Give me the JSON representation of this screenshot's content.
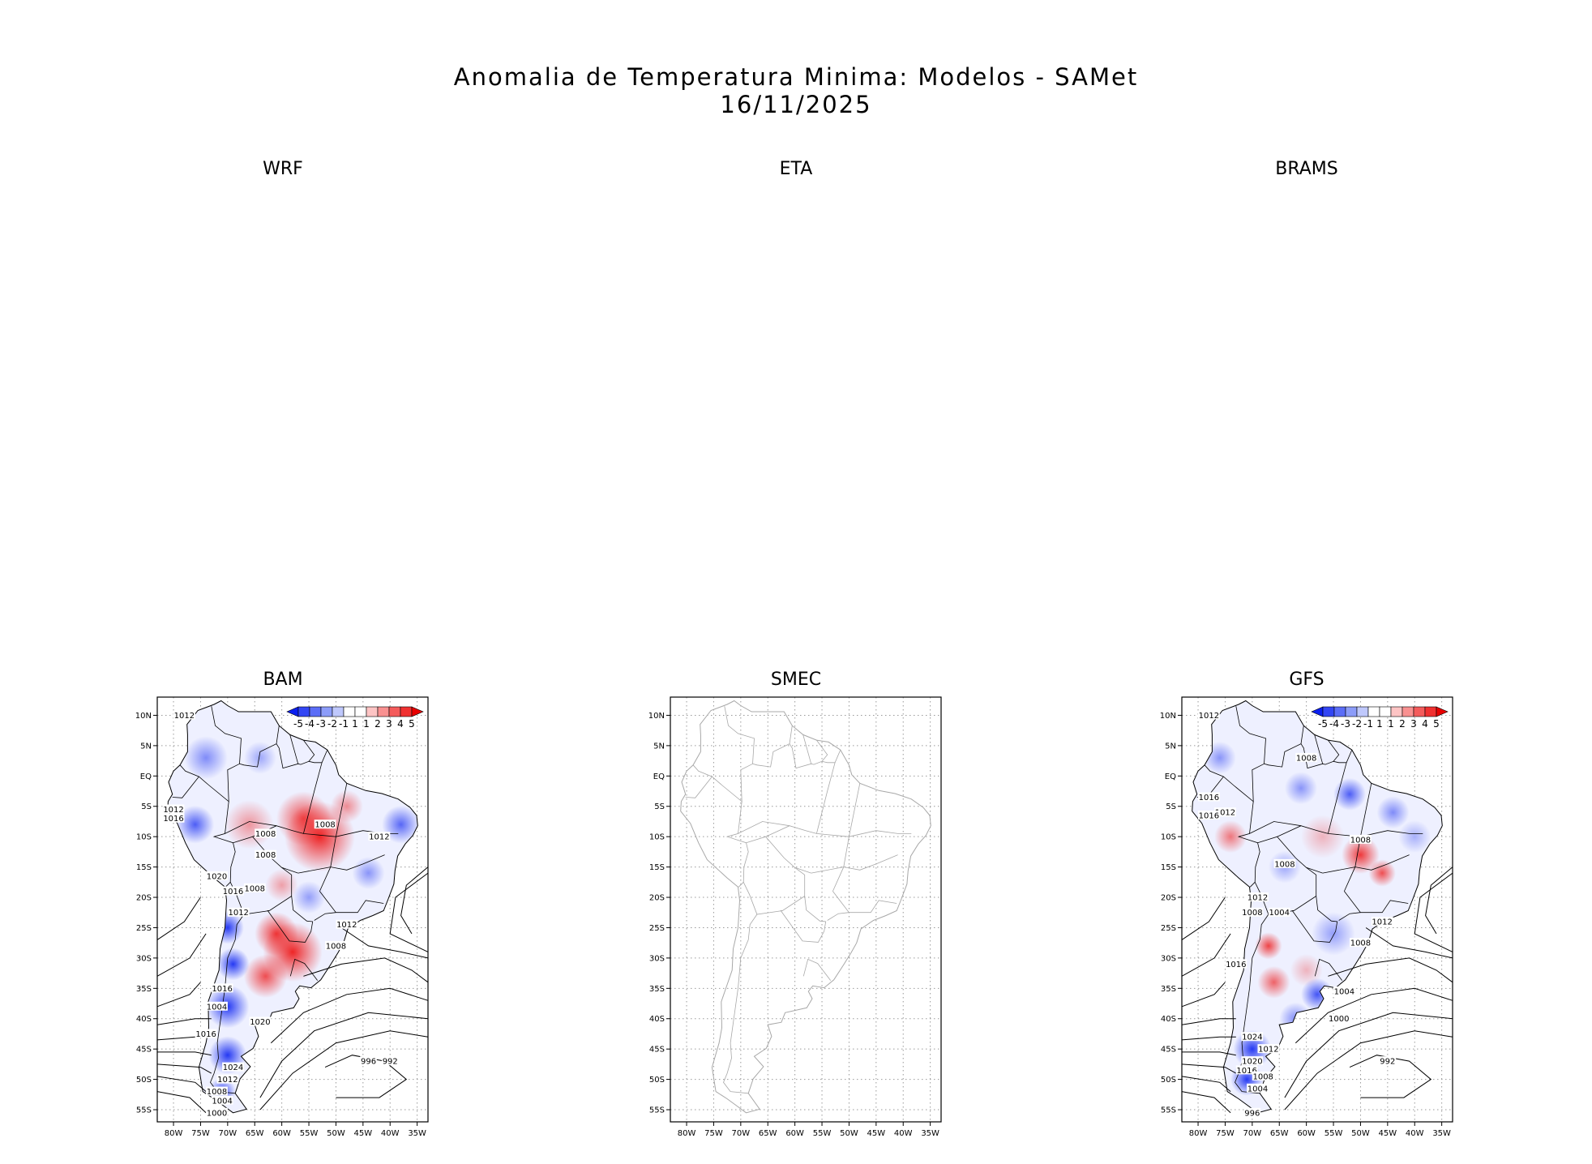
{
  "header": {
    "title": "Anomalia de Temperatura Minima: Modelos - SAMet",
    "date": "16/11/2025"
  },
  "panels": [
    {
      "id": "wrf",
      "label": "WRF",
      "has_map": false
    },
    {
      "id": "eta",
      "label": "ETA",
      "has_map": false
    },
    {
      "id": "brams",
      "label": "BRAMS",
      "has_map": false
    },
    {
      "id": "bam",
      "label": "BAM",
      "has_map": true,
      "colorbar": true,
      "contours": [
        "1012",
        "1012",
        "1016",
        "1008",
        "1008",
        "1008",
        "1012",
        "1020",
        "1016",
        "1008",
        "1012",
        "1012",
        "1008",
        "1016",
        "1004",
        "1020",
        "1016",
        "1024",
        "1012",
        "1008",
        "1004",
        "1000",
        "996",
        "992"
      ]
    },
    {
      "id": "smec",
      "label": "SMEC",
      "has_map": true,
      "colorbar": false,
      "contours": []
    },
    {
      "id": "gfs",
      "label": "GFS",
      "has_map": true,
      "colorbar": true,
      "contours": [
        "1012",
        "1008",
        "1016",
        "1012",
        "1016",
        "1008",
        "1008",
        "1012",
        "1008",
        "1004",
        "1012",
        "1008",
        "1016",
        "1004",
        "1000",
        "1024",
        "1012",
        "1020",
        "1016",
        "1008",
        "1004",
        "996",
        "992"
      ]
    }
  ],
  "axes": {
    "x_ticks": [
      "80W",
      "75W",
      "70W",
      "65W",
      "60W",
      "55W",
      "50W",
      "45W",
      "40W",
      "35W"
    ],
    "y_ticks": [
      "10N",
      "5N",
      "EQ",
      "5S",
      "10S",
      "15S",
      "20S",
      "25S",
      "30S",
      "35S",
      "40S",
      "45S",
      "50S",
      "55S"
    ],
    "lon_range": [
      -83,
      -33
    ],
    "lat_range": [
      13,
      -57
    ]
  },
  "colorbar": {
    "labels": [
      "-5",
      "-4",
      "-3",
      "-2",
      "-1",
      "1",
      "1",
      "2",
      "3",
      "4",
      "5"
    ],
    "colors": [
      "#0b1ff0",
      "#3346f4",
      "#5b6df7",
      "#8c9cf9",
      "#bfc8fc",
      "#ffffff",
      "#ffffff",
      "#fdc4c4",
      "#f99191",
      "#f45b5b",
      "#f03030",
      "#e80000"
    ]
  },
  "colors": {
    "coast": "#000000",
    "coast_smec": "#a8a8a8",
    "grid": "#9a9a9a",
    "cold": "#1a2ff2",
    "warm": "#ee1a1a"
  }
}
